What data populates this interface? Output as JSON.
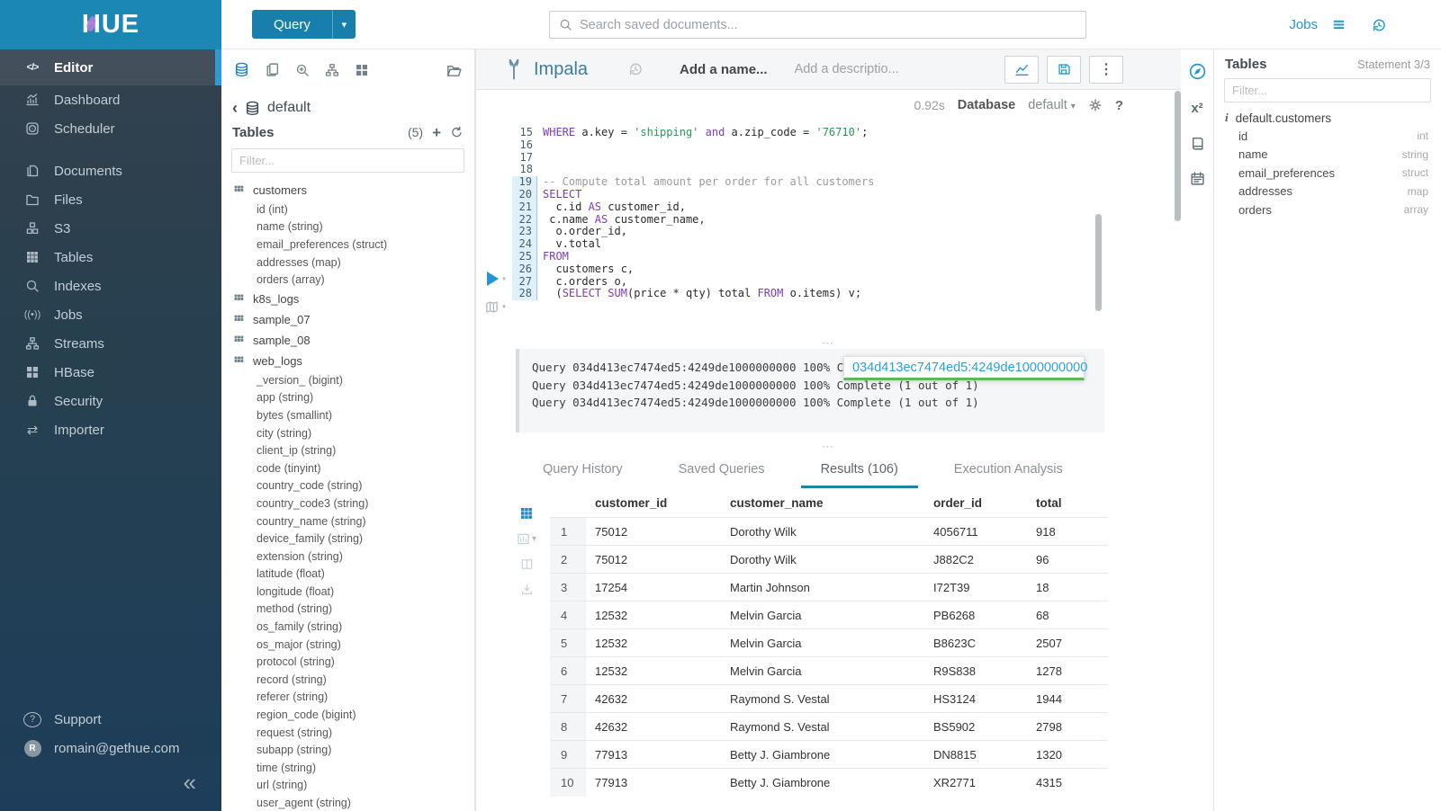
{
  "brand": {
    "logo_text": "HUE",
    "header_color": "#1b87b3",
    "accent_color": "#2d9bd4"
  },
  "topbar": {
    "query_button": "Query",
    "search_placeholder": "Search saved documents...",
    "jobs_label": "Jobs"
  },
  "sidebar": {
    "items": [
      {
        "label": "Editor",
        "icon": "code-icon",
        "active": true
      },
      {
        "label": "Dashboard",
        "icon": "dashboard-icon"
      },
      {
        "label": "Scheduler",
        "icon": "scheduler-icon"
      },
      {
        "label": "Documents",
        "icon": "documents-icon",
        "group_start": true
      },
      {
        "label": "Files",
        "icon": "folder-icon"
      },
      {
        "label": "S3",
        "icon": "cubes-icon"
      },
      {
        "label": "Tables",
        "icon": "table-grid-icon"
      },
      {
        "label": "Indexes",
        "icon": "magnifier-icon"
      },
      {
        "label": "Jobs",
        "icon": "broadcast-icon"
      },
      {
        "label": "Streams",
        "icon": "sitemap-icon"
      },
      {
        "label": "HBase",
        "icon": "blocks-icon"
      },
      {
        "label": "Security",
        "icon": "lock-icon"
      },
      {
        "label": "Importer",
        "icon": "swap-arrows-icon"
      }
    ],
    "support_label": "Support",
    "user_email": "romain@gethue.com",
    "avatar_initial": "R",
    "collapse_glyph": "«"
  },
  "assist": {
    "breadcrumb": "default",
    "tables_label": "Tables",
    "tables_count": "(5)",
    "filter_placeholder": "Filter...",
    "tables": [
      {
        "name": "customers",
        "columns": [
          "id (int)",
          "name (string)",
          "email_preferences (struct)",
          "addresses (map)",
          "orders (array)"
        ]
      },
      {
        "name": "k8s_logs",
        "columns": []
      },
      {
        "name": "sample_07",
        "columns": []
      },
      {
        "name": "sample_08",
        "columns": []
      },
      {
        "name": "web_logs",
        "columns": [
          "_version_ (bigint)",
          "app (string)",
          "bytes (smallint)",
          "city (string)",
          "client_ip (string)",
          "code (tinyint)",
          "country_code (string)",
          "country_code3 (string)",
          "country_name (string)",
          "device_family (string)",
          "extension (string)",
          "latitude (float)",
          "longitude (float)",
          "method (string)",
          "os_family (string)",
          "os_major (string)",
          "protocol (string)",
          "record (string)",
          "referer (string)",
          "region_code (bigint)",
          "request (string)",
          "subapp (string)",
          "time (string)",
          "url (string)",
          "user_agent (string)"
        ]
      }
    ]
  },
  "editor": {
    "engine": "Impala",
    "name_placeholder": "Add a name...",
    "description_placeholder": "Add a descriptio...",
    "duration": "0.92s",
    "database_label": "Database",
    "database_value": "default",
    "code": {
      "first_line": 15,
      "active_from_line": 19,
      "lines": [
        [
          [
            "k",
            "WHERE"
          ],
          [
            "p",
            " a.key = "
          ],
          [
            "s",
            "'shipping'"
          ],
          [
            "p",
            " "
          ],
          [
            "k",
            "and"
          ],
          [
            "p",
            " a.zip_code = "
          ],
          [
            "s",
            "'76710'"
          ],
          [
            "p",
            ";"
          ]
        ],
        [],
        [],
        [],
        [
          [
            "c",
            "-- Compute total amount per order for all customers"
          ]
        ],
        [
          [
            "k",
            "SELECT"
          ]
        ],
        [
          [
            "p",
            "  c.id "
          ],
          [
            "k",
            "AS"
          ],
          [
            "p",
            " customer_id,"
          ]
        ],
        [
          [
            "p",
            " c.name "
          ],
          [
            "k",
            "AS"
          ],
          [
            "p",
            " customer_name,"
          ]
        ],
        [
          [
            "p",
            "  o.order_id,"
          ]
        ],
        [
          [
            "p",
            "  v.total"
          ]
        ],
        [
          [
            "k",
            "FROM"
          ]
        ],
        [
          [
            "p",
            "  customers c,"
          ]
        ],
        [
          [
            "p",
            "  c.orders o,"
          ]
        ],
        [
          [
            "p",
            "  ("
          ],
          [
            "k",
            "SELECT"
          ],
          [
            "p",
            " "
          ],
          [
            "k",
            "SUM"
          ],
          [
            "p",
            "(price * qty) total "
          ],
          [
            "k",
            "FROM"
          ],
          [
            "p",
            " o.items) v;"
          ]
        ]
      ]
    },
    "log_lines": [
      "Query 034d413ec7474ed5:4249de1000000000 100% Complete (1 out of 1)",
      "Query 034d413ec7474ed5:4249de1000000000 100% Complete (1 out of 1)",
      "Query 034d413ec7474ed5:4249de1000000000 100% Complete (1 out of 1)"
    ],
    "query_id_tooltip": "034d413ec7474ed5:4249de1000000000"
  },
  "result_tabs": [
    {
      "label": "Query History",
      "active": false
    },
    {
      "label": "Saved Queries",
      "active": false
    },
    {
      "label": "Results (106)",
      "active": true
    },
    {
      "label": "Execution Analysis",
      "active": false
    }
  ],
  "results": {
    "columns": [
      "customer_id",
      "customer_name",
      "order_id",
      "total"
    ],
    "rows": [
      [
        "1",
        "75012",
        "Dorothy Wilk",
        "4056711",
        "918"
      ],
      [
        "2",
        "75012",
        "Dorothy Wilk",
        "J882C2",
        "96"
      ],
      [
        "3",
        "17254",
        "Martin Johnson",
        "I72T39",
        "18"
      ],
      [
        "4",
        "12532",
        "Melvin Garcia",
        "PB6268",
        "68"
      ],
      [
        "5",
        "12532",
        "Melvin Garcia",
        "B8623C",
        "2507"
      ],
      [
        "6",
        "12532",
        "Melvin Garcia",
        "R9S838",
        "1278"
      ],
      [
        "7",
        "42632",
        "Raymond S. Vestal",
        "HS3124",
        "1944"
      ],
      [
        "8",
        "42632",
        "Raymond S. Vestal",
        "BS5902",
        "2798"
      ],
      [
        "9",
        "77913",
        "Betty J. Giambrone",
        "DN8815",
        "1320"
      ],
      [
        "10",
        "77913",
        "Betty J. Giambrone",
        "XR2771",
        "4315"
      ]
    ]
  },
  "right_panel": {
    "title": "Tables",
    "statement_indicator": "Statement 3/3",
    "filter_placeholder": "Filter...",
    "active_table": "default.customers",
    "columns": [
      {
        "name": "id",
        "type": "int"
      },
      {
        "name": "name",
        "type": "string"
      },
      {
        "name": "email_preferences",
        "type": "struct"
      },
      {
        "name": "addresses",
        "type": "map"
      },
      {
        "name": "orders",
        "type": "array"
      }
    ]
  }
}
